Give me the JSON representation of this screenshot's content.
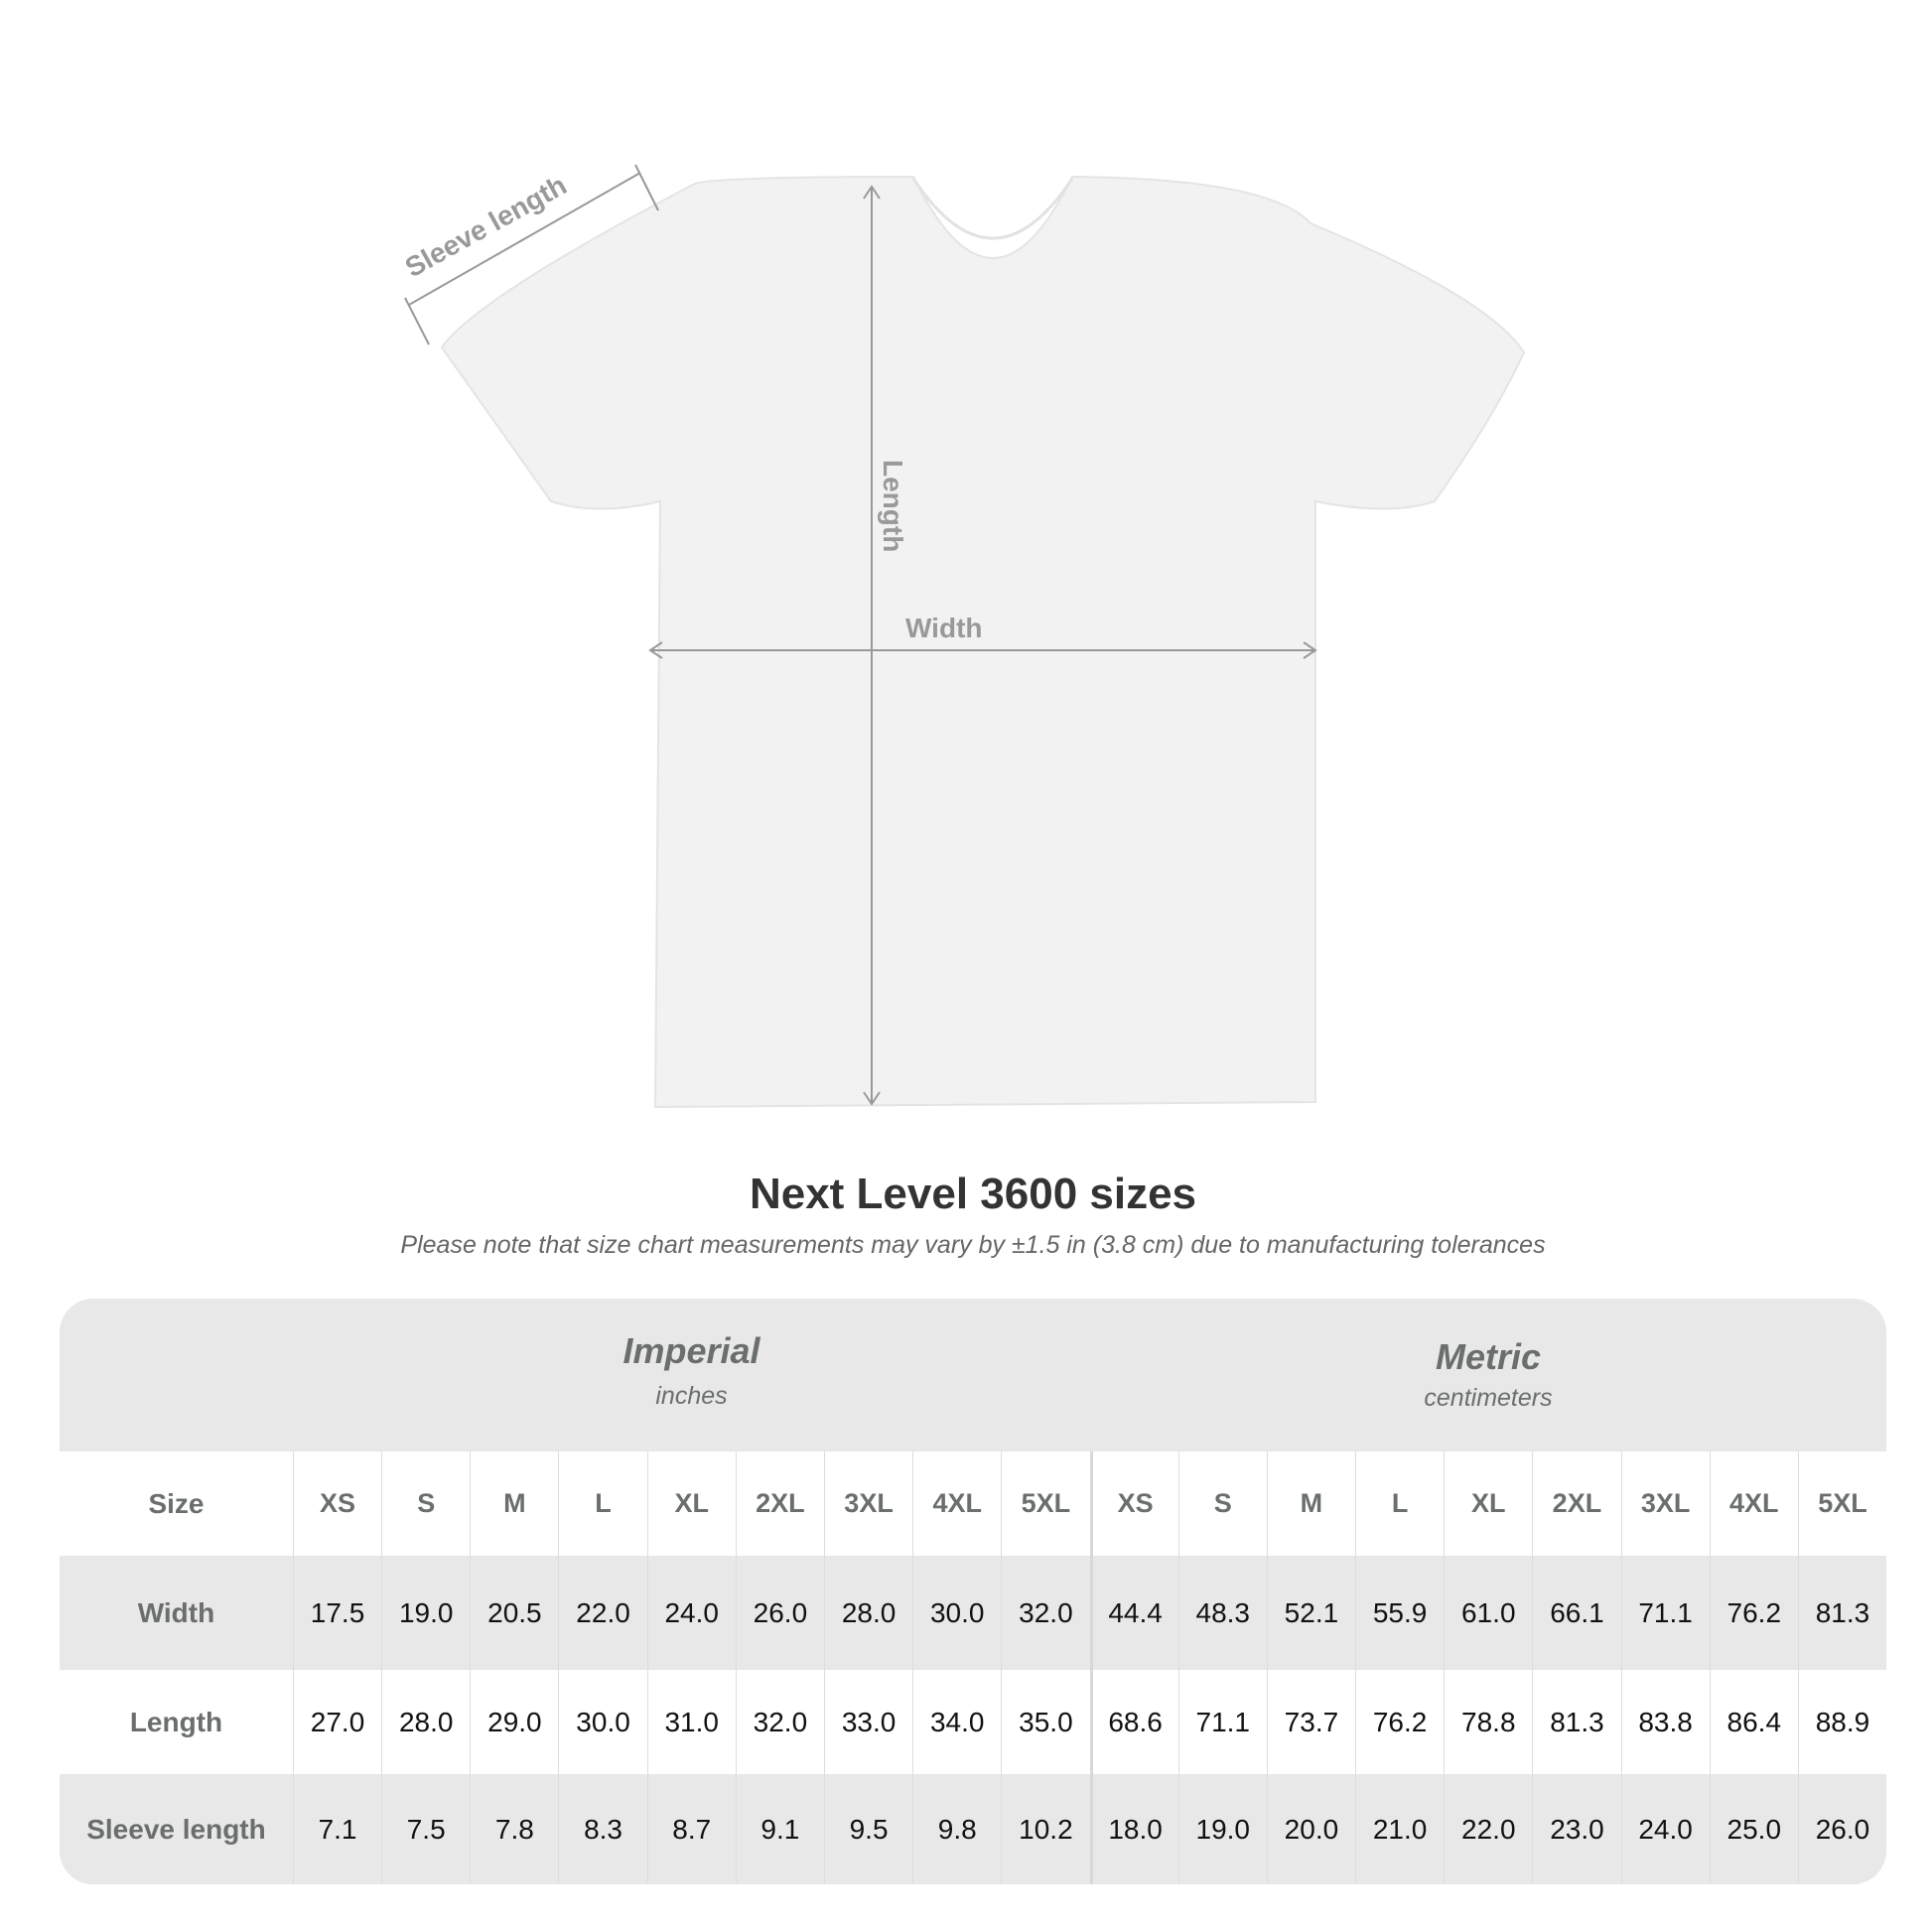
{
  "diagram": {
    "sleeve_label": "Sleeve length",
    "length_label": "Length",
    "width_label": "Width",
    "shirt_color": "#f2f2f2"
  },
  "title": "Next Level 3600 sizes",
  "note": "Please note that size chart measurements may vary by ±1.5 in (3.8 cm) due to manufacturing tolerances",
  "table": {
    "imperial": {
      "title": "Imperial",
      "unit": "inches"
    },
    "metric": {
      "title": "Metric",
      "unit": "centimeters"
    },
    "size_label": "Size",
    "sizes": [
      "XS",
      "S",
      "M",
      "L",
      "XL",
      "2XL",
      "3XL",
      "4XL",
      "5XL"
    ],
    "rows": [
      {
        "label": "Width",
        "imperial": [
          "17.5",
          "19.0",
          "20.5",
          "22.0",
          "24.0",
          "26.0",
          "28.0",
          "30.0",
          "32.0"
        ],
        "metric": [
          "44.4",
          "48.3",
          "52.1",
          "55.9",
          "61.0",
          "66.1",
          "71.1",
          "76.2",
          "81.3"
        ]
      },
      {
        "label": "Length",
        "imperial": [
          "27.0",
          "28.0",
          "29.0",
          "30.0",
          "31.0",
          "32.0",
          "33.0",
          "34.0",
          "35.0"
        ],
        "metric": [
          "68.6",
          "71.1",
          "73.7",
          "76.2",
          "78.8",
          "81.3",
          "83.8",
          "86.4",
          "88.9"
        ]
      },
      {
        "label": "Sleeve length",
        "imperial": [
          "7.1",
          "7.5",
          "7.8",
          "8.3",
          "8.7",
          "9.1",
          "9.5",
          "9.8",
          "10.2"
        ],
        "metric": [
          "18.0",
          "19.0",
          "20.0",
          "21.0",
          "22.0",
          "23.0",
          "24.0",
          "25.0",
          "26.0"
        ]
      }
    ]
  }
}
